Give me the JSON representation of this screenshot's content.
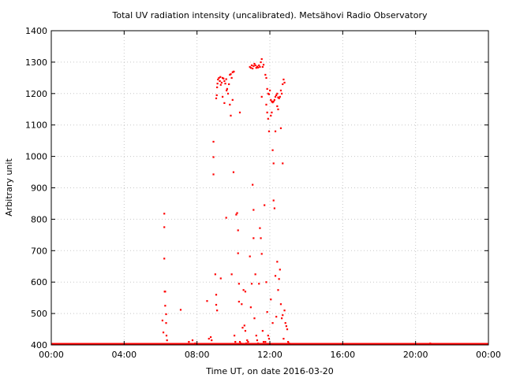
{
  "chart_data": {
    "type": "scatter",
    "title": "Total UV radiation intensity (uncalibrated). Metsähovi Radio Observatory",
    "xlabel": "Time UT, on date 2016-03-20",
    "ylabel": "Arbitrary unit",
    "xlim": [
      0,
      24
    ],
    "ylim": [
      400,
      1400
    ],
    "x_ticks": [
      {
        "value": 0,
        "label": "00:00"
      },
      {
        "value": 4,
        "label": "04:00"
      },
      {
        "value": 8,
        "label": "08:00"
      },
      {
        "value": 12,
        "label": "12:00"
      },
      {
        "value": 16,
        "label": "16:00"
      },
      {
        "value": 20,
        "label": "20:00"
      },
      {
        "value": 24,
        "label": "00:00"
      }
    ],
    "y_ticks": [
      400,
      500,
      600,
      700,
      800,
      900,
      1000,
      1100,
      1200,
      1300,
      1400
    ],
    "grid": true,
    "marker_color": "#ff0000",
    "series": [
      {
        "baseline": {
          "y": 400,
          "x_from": 0,
          "x_to": 24
        },
        "points": [
          [
            6.1,
            478
          ],
          [
            6.15,
            440
          ],
          [
            6.2,
            818
          ],
          [
            6.2,
            775
          ],
          [
            6.2,
            675
          ],
          [
            6.22,
            570
          ],
          [
            6.25,
            570
          ],
          [
            6.25,
            525
          ],
          [
            6.3,
            498
          ],
          [
            6.3,
            470
          ],
          [
            6.32,
            430
          ],
          [
            6.35,
            415
          ],
          [
            7.1,
            512
          ],
          [
            7.55,
            410
          ],
          [
            7.75,
            415
          ],
          [
            7.9,
            405
          ],
          [
            8.55,
            540
          ],
          [
            8.65,
            420
          ],
          [
            8.75,
            425
          ],
          [
            8.8,
            415
          ],
          [
            8.9,
            1047
          ],
          [
            8.9,
            998
          ],
          [
            8.9,
            943
          ],
          [
            9.0,
            625
          ],
          [
            9.05,
            560
          ],
          [
            9.05,
            528
          ],
          [
            9.1,
            510
          ],
          [
            9.05,
            1185
          ],
          [
            9.08,
            1195
          ],
          [
            9.1,
            1220
          ],
          [
            9.12,
            1232
          ],
          [
            9.15,
            1245
          ],
          [
            9.2,
            1250
          ],
          [
            9.25,
            1240
          ],
          [
            9.28,
            1253
          ],
          [
            9.3,
            1228
          ],
          [
            9.35,
            1235
          ],
          [
            9.4,
            1250
          ],
          [
            9.45,
            1248
          ],
          [
            9.5,
            1240
          ],
          [
            9.55,
            1232
          ],
          [
            9.6,
            1246
          ],
          [
            9.62,
            1210
          ],
          [
            9.65,
            1215
          ],
          [
            9.7,
            1200
          ],
          [
            9.75,
            1230
          ],
          [
            9.8,
            1260
          ],
          [
            9.85,
            1262
          ],
          [
            9.9,
            1250
          ],
          [
            9.95,
            1268
          ],
          [
            10.0,
            1270
          ],
          [
            10.02,
            1270
          ],
          [
            9.3,
            612
          ],
          [
            9.4,
            1190
          ],
          [
            9.5,
            1170
          ],
          [
            9.6,
            805
          ],
          [
            9.8,
            1165
          ],
          [
            9.85,
            1130
          ],
          [
            9.95,
            1180
          ],
          [
            9.9,
            625
          ],
          [
            10.0,
            950
          ],
          [
            10.05,
            430
          ],
          [
            10.1,
            410
          ],
          [
            10.15,
            815
          ],
          [
            10.2,
            820
          ],
          [
            10.25,
            765
          ],
          [
            10.25,
            692
          ],
          [
            10.3,
            538
          ],
          [
            10.3,
            595
          ],
          [
            10.35,
            1140
          ],
          [
            10.35,
            410
          ],
          [
            10.4,
            405
          ],
          [
            10.45,
            530
          ],
          [
            10.5,
            455
          ],
          [
            10.55,
            575
          ],
          [
            10.6,
            462
          ],
          [
            10.65,
            570
          ],
          [
            10.65,
            445
          ],
          [
            10.7,
            405
          ],
          [
            10.75,
            415
          ],
          [
            10.8,
            410
          ],
          [
            10.9,
            1285
          ],
          [
            10.95,
            1282
          ],
          [
            11.0,
            1290
          ],
          [
            11.05,
            1280
          ],
          [
            11.1,
            1288
          ],
          [
            11.15,
            1295
          ],
          [
            11.2,
            1290
          ],
          [
            11.25,
            1282
          ],
          [
            11.3,
            1286
          ],
          [
            11.35,
            1283
          ],
          [
            11.4,
            1290
          ],
          [
            11.45,
            1285
          ],
          [
            11.5,
            1300
          ],
          [
            11.55,
            1310
          ],
          [
            11.6,
            1285
          ],
          [
            11.65,
            1292
          ],
          [
            10.9,
            682
          ],
          [
            10.95,
            520
          ],
          [
            11.0,
            595
          ],
          [
            11.05,
            910
          ],
          [
            11.1,
            830
          ],
          [
            11.1,
            740
          ],
          [
            11.15,
            485
          ],
          [
            11.2,
            625
          ],
          [
            11.25,
            430
          ],
          [
            11.3,
            415
          ],
          [
            11.35,
            405
          ],
          [
            11.4,
            595
          ],
          [
            11.45,
            772
          ],
          [
            11.5,
            740
          ],
          [
            11.55,
            690
          ],
          [
            11.55,
            1190
          ],
          [
            11.6,
            445
          ],
          [
            11.65,
            410
          ],
          [
            11.7,
            845
          ],
          [
            11.75,
            1260
          ],
          [
            11.8,
            1250
          ],
          [
            11.85,
            1215
          ],
          [
            11.9,
            1200
          ],
          [
            11.95,
            1198
          ],
          [
            12.0,
            1210
          ],
          [
            12.05,
            1180
          ],
          [
            12.1,
            1175
          ],
          [
            12.15,
            1172
          ],
          [
            12.2,
            1175
          ],
          [
            12.25,
            1180
          ],
          [
            12.3,
            1190
          ],
          [
            12.35,
            1195
          ],
          [
            12.4,
            1200
          ],
          [
            12.45,
            1188
          ],
          [
            12.5,
            1185
          ],
          [
            12.55,
            1190
          ],
          [
            12.6,
            1210
          ],
          [
            12.65,
            1200
          ],
          [
            12.7,
            1230
          ],
          [
            12.75,
            1245
          ],
          [
            12.8,
            1235
          ],
          [
            11.8,
            1165
          ],
          [
            11.85,
            1140
          ],
          [
            11.9,
            1120
          ],
          [
            11.95,
            1080
          ],
          [
            12.05,
            1130
          ],
          [
            12.1,
            1140
          ],
          [
            12.15,
            1020
          ],
          [
            12.2,
            978
          ],
          [
            12.3,
            1080
          ],
          [
            12.4,
            1160
          ],
          [
            12.45,
            1150
          ],
          [
            12.6,
            1090
          ],
          [
            12.7,
            978
          ],
          [
            11.75,
            410
          ],
          [
            11.8,
            600
          ],
          [
            11.85,
            505
          ],
          [
            11.9,
            430
          ],
          [
            11.95,
            420
          ],
          [
            12.05,
            545
          ],
          [
            12.15,
            470
          ],
          [
            12.2,
            860
          ],
          [
            12.25,
            835
          ],
          [
            12.3,
            620
          ],
          [
            12.35,
            490
          ],
          [
            12.4,
            665
          ],
          [
            12.45,
            575
          ],
          [
            12.5,
            610
          ],
          [
            12.55,
            640
          ],
          [
            12.6,
            530
          ],
          [
            12.65,
            485
          ],
          [
            12.7,
            495
          ],
          [
            12.75,
            420
          ],
          [
            12.8,
            510
          ],
          [
            12.85,
            470
          ],
          [
            12.9,
            460
          ],
          [
            12.95,
            450
          ],
          [
            13.0,
            410
          ],
          [
            13.05,
            405
          ],
          [
            20.8,
            405
          ]
        ]
      }
    ]
  }
}
